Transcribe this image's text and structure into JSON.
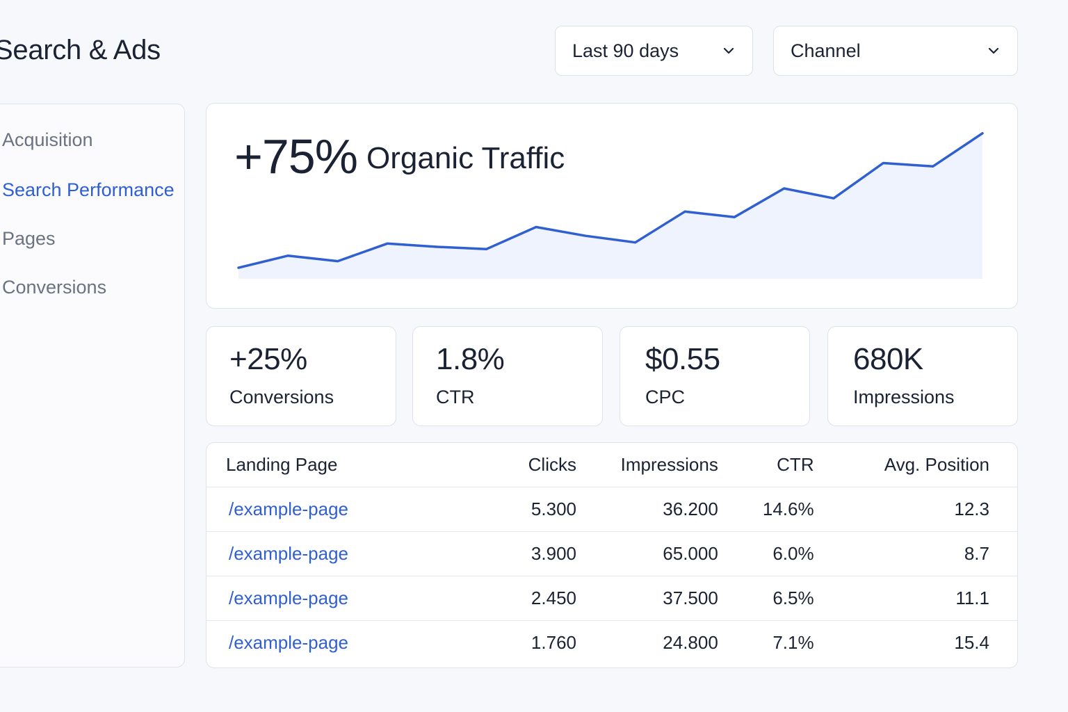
{
  "header": {
    "title": "Search & Ads",
    "date_filter": "Last 90 days",
    "channel_filter": "Channel"
  },
  "sidebar": {
    "items": [
      {
        "label": "Acquisition",
        "active": false
      },
      {
        "label": "Search Performance",
        "active": true
      },
      {
        "label": "Pages",
        "active": false
      },
      {
        "label": "Conversions",
        "active": false
      }
    ]
  },
  "hero": {
    "value": "+75%",
    "label": "Organic Traffic"
  },
  "chart_data": {
    "type": "area",
    "title": "",
    "xlabel": "",
    "ylabel": "",
    "grid": false,
    "legend": "none",
    "series": [
      {
        "values": [
          10,
          21,
          16,
          32,
          29,
          27,
          47,
          39,
          33,
          61,
          56,
          82,
          73,
          105,
          102,
          132
        ]
      }
    ],
    "ylim": [
      0,
      140
    ],
    "line_color": "#2f5fd0",
    "fill_color": "#eef3fd"
  },
  "kpis": [
    {
      "value": "+25%",
      "label": "Conversions"
    },
    {
      "value": "1.8%",
      "label": "CTR"
    },
    {
      "value": "$0.55",
      "label": "CPC"
    },
    {
      "value": "680K",
      "label": "Impressions"
    }
  ],
  "table": {
    "headers": {
      "page": "Landing Page",
      "clicks": "Clicks",
      "impressions": "Impressions",
      "ctr": "CTR",
      "position": "Avg. Position"
    },
    "rows": [
      {
        "page": "/example-page",
        "clicks": "5.300",
        "impressions": "36.200",
        "ctr": "14.6%",
        "position": "12.3"
      },
      {
        "page": "/example-page",
        "clicks": "3.900",
        "impressions": "65.000",
        "ctr": "6.0%",
        "position": "8.7"
      },
      {
        "page": "/example-page",
        "clicks": "2.450",
        "impressions": "37.500",
        "ctr": "6.5%",
        "position": "11.1"
      },
      {
        "page": "/example-page",
        "clicks": "1.760",
        "impressions": "24.800",
        "ctr": "7.1%",
        "position": "15.4"
      }
    ]
  }
}
